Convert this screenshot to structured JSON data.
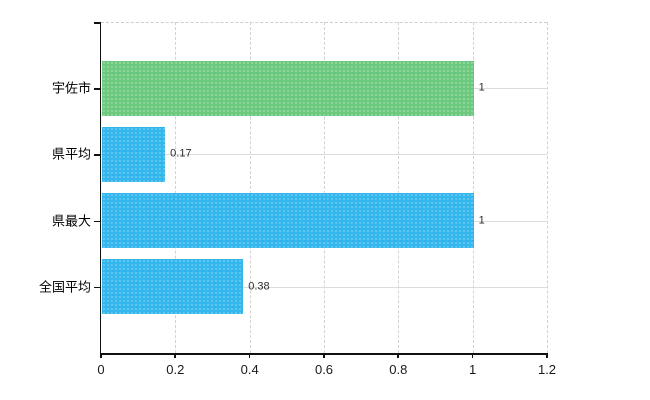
{
  "chart_data": {
    "type": "bar",
    "orientation": "horizontal",
    "title": "",
    "xlabel": "",
    "ylabel": "",
    "categories": [
      "宇佐市",
      "県平均",
      "県最大",
      "全国平均"
    ],
    "values": [
      1,
      0.17,
      1,
      0.38
    ],
    "value_labels": [
      "1",
      "0.17",
      "1",
      "0.38"
    ],
    "bar_colors": [
      "green",
      "blue",
      "blue",
      "blue"
    ],
    "xlim": [
      0,
      1.2
    ],
    "x_tick_values": [
      0,
      0.2,
      0.4,
      0.6,
      0.8,
      1,
      1.2
    ],
    "x_tick_labels": [
      "0",
      "0.2",
      "0.4",
      "0.6",
      "0.8",
      "1",
      "1.2"
    ],
    "grid": "vertical dashed gridlines at each x tick; horizontal solid gridline at each category center; dashed top plot border",
    "legend": false
  },
  "colors": {
    "background": "#ffffff",
    "bar_green": "#6cc97e",
    "bar_blue": "#33b7ed",
    "axis": "#111111",
    "vertical_gridline": "#d2d2d2",
    "horizontal_gridline": "#dcdcdc",
    "top_border": "#cfcfcf",
    "category_text": "#000000",
    "value_text": "#2a2a2a",
    "tick_text": "#1a1a1a"
  }
}
